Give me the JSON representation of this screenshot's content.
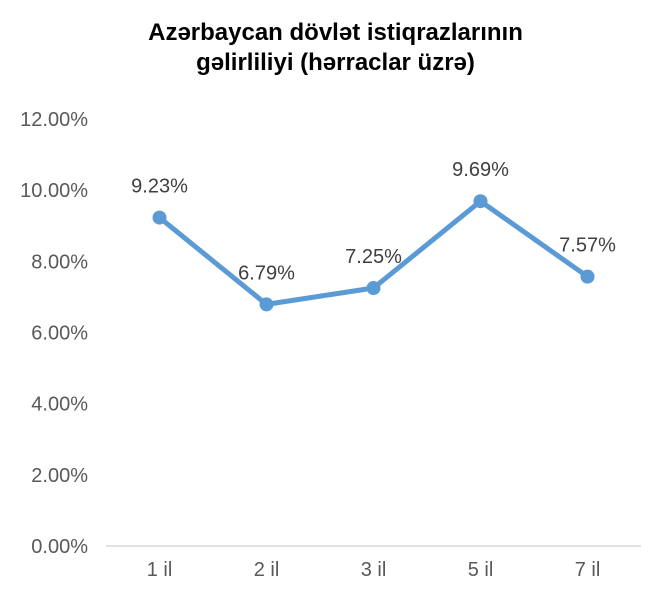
{
  "chart_data": {
    "type": "line",
    "title_lines": [
      "Azərbaycan dövlət istiqrazlarının",
      "gəlirliliyi (hərraclar üzrə)"
    ],
    "categories": [
      "1 il",
      "2 il",
      "3 il",
      "5 il",
      "7 il"
    ],
    "series": [
      {
        "values": [
          9.23,
          6.79,
          7.25,
          9.69,
          7.57
        ],
        "data_labels": [
          "9.23%",
          "6.79%",
          "7.25%",
          "9.69%",
          "7.57%"
        ],
        "color": "#5b9bd5"
      }
    ],
    "yticks": [
      0,
      2,
      4,
      6,
      8,
      10,
      12
    ],
    "ytick_labels": [
      "0.00%",
      "2.00%",
      "4.00%",
      "6.00%",
      "8.00%",
      "10.00%",
      "12.00%"
    ],
    "ylim": [
      0,
      12
    ],
    "grid": false,
    "legend": "none",
    "axis_color": "#d9d9d9",
    "tick_color": "#595959"
  }
}
